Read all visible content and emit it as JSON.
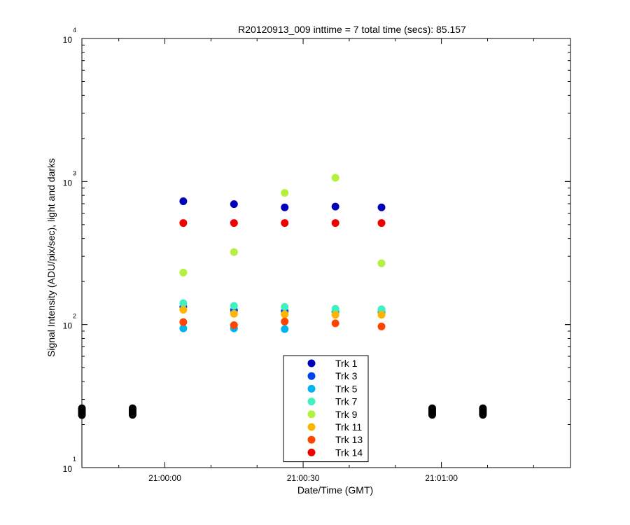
{
  "chart_data": {
    "type": "scatter",
    "title": "R20120913_009 inttime = 7 total time (secs): 85.157",
    "xlabel": "Date/Time (GMT)",
    "ylabel": "Signal Intensity (ADU/pix/sec), light and darks",
    "xscale": "time",
    "yscale": "log",
    "xlim": [
      "20:59:42",
      "21:01:28"
    ],
    "ylim": [
      10,
      10000
    ],
    "x_ticks": [
      "21:00:00",
      "21:00:30",
      "21:01:00"
    ],
    "y_ticks": [
      {
        "base": "10",
        "exp": "1"
      },
      {
        "base": "10",
        "exp": "2"
      },
      {
        "base": "10",
        "exp": "3"
      },
      {
        "base": "10",
        "exp": "4"
      }
    ],
    "grid": false,
    "legend_position": "bottom-center",
    "series": [
      {
        "name": "Trk 1",
        "color": "#0000b8",
        "points": [
          [
            "21:00:04",
            728
          ],
          [
            "21:00:15",
            695
          ],
          [
            "21:00:26",
            660
          ],
          [
            "21:00:37",
            668
          ],
          [
            "21:00:47",
            660
          ]
        ]
      },
      {
        "name": "Trk 3",
        "color": "#0044ee",
        "points": [
          [
            "21:00:04",
            133
          ],
          [
            "21:00:15",
            126
          ],
          [
            "21:00:26",
            124
          ],
          [
            "21:00:37",
            123
          ],
          [
            "21:00:47",
            122
          ]
        ]
      },
      {
        "name": "Trk 5",
        "color": "#00b4f0",
        "points": [
          [
            "21:00:04",
            94
          ],
          [
            "21:00:15",
            94
          ],
          [
            "21:00:26",
            93
          ],
          [
            "21:00:37",
            123
          ],
          [
            "21:00:47",
            123
          ]
        ]
      },
      {
        "name": "Trk 7",
        "color": "#40f0c0",
        "points": [
          [
            "21:00:04",
            141
          ],
          [
            "21:00:15",
            135
          ],
          [
            "21:00:26",
            133
          ],
          [
            "21:00:37",
            129
          ],
          [
            "21:00:47",
            128
          ]
        ]
      },
      {
        "name": "Trk 9",
        "color": "#b4f040",
        "points": [
          [
            "21:00:04",
            231
          ],
          [
            "21:00:15",
            321
          ],
          [
            "21:00:26",
            833
          ],
          [
            "21:00:37",
            1062
          ],
          [
            "21:00:47",
            268
          ]
        ]
      },
      {
        "name": "Trk 11",
        "color": "#ffb400",
        "points": [
          [
            "21:00:04",
            127
          ],
          [
            "21:00:15",
            119
          ],
          [
            "21:00:26",
            118
          ],
          [
            "21:00:37",
            117
          ],
          [
            "21:00:47",
            117
          ]
        ]
      },
      {
        "name": "Trk 13",
        "color": "#ff4400",
        "points": [
          [
            "21:00:04",
            104
          ],
          [
            "21:00:15",
            99
          ],
          [
            "21:00:26",
            105
          ],
          [
            "21:00:37",
            102
          ],
          [
            "21:00:47",
            97
          ]
        ]
      },
      {
        "name": "Trk 14",
        "color": "#ee0000",
        "points": [
          [
            "21:00:04",
            513
          ],
          [
            "21:00:15",
            513
          ],
          [
            "21:00:26",
            513
          ],
          [
            "21:00:37",
            513
          ],
          [
            "21:00:47",
            513
          ]
        ]
      }
    ],
    "dark_points": {
      "color": "#000000",
      "points": [
        [
          "20:59:42",
          23.3
        ],
        [
          "20:59:42",
          24.1
        ],
        [
          "20:59:42",
          24.7
        ],
        [
          "20:59:42",
          25.3
        ],
        [
          "20:59:42",
          26.0
        ],
        [
          "20:59:53",
          23.4
        ],
        [
          "20:59:53",
          24.1
        ],
        [
          "20:59:53",
          24.7
        ],
        [
          "20:59:53",
          25.3
        ],
        [
          "20:59:53",
          26.0
        ],
        [
          "21:00:58",
          23.4
        ],
        [
          "21:00:58",
          24.1
        ],
        [
          "21:00:58",
          24.7
        ],
        [
          "21:00:58",
          25.3
        ],
        [
          "21:00:58",
          26.0
        ],
        [
          "21:01:09",
          23.4
        ],
        [
          "21:01:09",
          24.1
        ],
        [
          "21:01:09",
          24.7
        ],
        [
          "21:01:09",
          25.3
        ],
        [
          "21:01:09",
          26.0
        ]
      ]
    }
  }
}
